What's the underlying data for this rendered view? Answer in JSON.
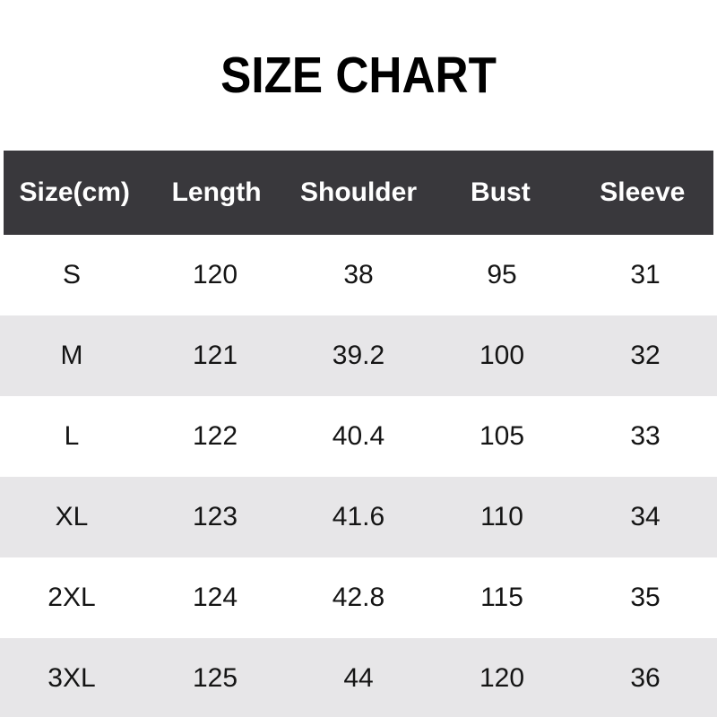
{
  "title": "SIZE CHART",
  "chart_data": {
    "type": "table",
    "title": "SIZE CHART",
    "unit": "cm",
    "columns": [
      "Size(cm)",
      "Length",
      "Shoulder",
      "Bust",
      "Sleeve"
    ],
    "rows": [
      [
        "S",
        "120",
        "38",
        "95",
        "31"
      ],
      [
        "M",
        "121",
        "39.2",
        "100",
        "32"
      ],
      [
        "L",
        "122",
        "40.4",
        "105",
        "33"
      ],
      [
        "XL",
        "123",
        "41.6",
        "110",
        "34"
      ],
      [
        "2XL",
        "124",
        "42.8",
        "115",
        "35"
      ],
      [
        "3XL",
        "125",
        "44",
        "120",
        "36"
      ]
    ]
  },
  "colors": {
    "header_bg": "#39383c",
    "header_text": "#ffffff",
    "row_bg": "#ffffff",
    "row_alt_bg": "#e7e6e8",
    "title_text": "#000000",
    "body_text": "#141414"
  }
}
